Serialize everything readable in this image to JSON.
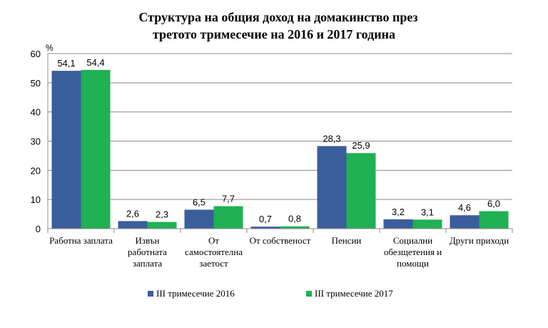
{
  "chart_data": {
    "type": "bar",
    "title_lines": [
      "Структура на общия доход на домакинство през",
      "третото тримесечие на 2016 и 2017 година"
    ],
    "ylabel": "%",
    "ylim": [
      0,
      60
    ],
    "yticks": [
      "0",
      "10",
      "20",
      "30",
      "40",
      "50",
      "60"
    ],
    "categories": [
      [
        "Работна заплата"
      ],
      [
        "Извън",
        "работната",
        "заплата"
      ],
      [
        "От",
        "самостоятелна",
        "заетост"
      ],
      [
        "От собственост"
      ],
      [
        "Пенсии"
      ],
      [
        "Социални",
        "обезщетения и",
        "помощи"
      ],
      [
        "Други приходи"
      ]
    ],
    "series": [
      {
        "name": "III  тримесечие 2016",
        "color": "#3a5d9c",
        "values": [
          54.1,
          2.6,
          6.5,
          0.7,
          28.3,
          3.2,
          4.6
        ],
        "labels": [
          "54,1",
          "2,6",
          "6,5",
          "0,7",
          "28,3",
          "3,2",
          "4,6"
        ]
      },
      {
        "name": "III  тримесечие 2017",
        "color": "#1fb153",
        "values": [
          54.4,
          2.3,
          7.7,
          0.8,
          25.9,
          3.1,
          6.0
        ],
        "labels": [
          "54,4",
          "2,3",
          "7,7",
          "0,8",
          "25,9",
          "3,1",
          "6,0"
        ]
      }
    ],
    "grid": true,
    "legend_position": "bottom"
  }
}
